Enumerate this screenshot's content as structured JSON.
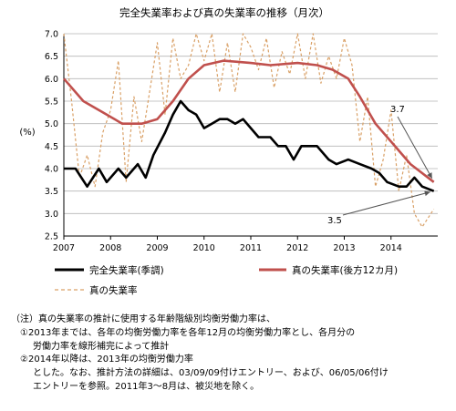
{
  "chart_data": {
    "type": "line",
    "title": "完全失業率および真の失業率の推移（月次）",
    "ylabel": "(%)",
    "xlabel": "",
    "ylim": [
      2.5,
      7.0
    ],
    "yticks": [
      "2.5",
      "3.0",
      "3.5",
      "4.0",
      "4.5",
      "5.0",
      "5.5",
      "6.0",
      "6.5",
      "7.0"
    ],
    "xlim": [
      "2007-01",
      "2014-12"
    ],
    "xticks": [
      "2007",
      "2008",
      "2009",
      "2010",
      "2011",
      "2012",
      "2013",
      "2014"
    ],
    "grid": "horizontal",
    "legend_position": "bottom",
    "colors": {
      "unemployment": "#000000",
      "true_12m": "#c0504d",
      "true": "#d9a066"
    },
    "series": [
      {
        "name": "完全失業率(季調)",
        "style": "solid-black",
        "points": [
          [
            "2007-01",
            4.0
          ],
          [
            "2007-04",
            4.0
          ],
          [
            "2007-07",
            3.6
          ],
          [
            "2007-10",
            4.0
          ],
          [
            "2007-12",
            3.7
          ],
          [
            "2008-03",
            4.0
          ],
          [
            "2008-05",
            3.8
          ],
          [
            "2008-08",
            4.1
          ],
          [
            "2008-10",
            3.8
          ],
          [
            "2008-12",
            4.3
          ],
          [
            "2009-03",
            4.8
          ],
          [
            "2009-05",
            5.2
          ],
          [
            "2009-07",
            5.5
          ],
          [
            "2009-09",
            5.3
          ],
          [
            "2009-11",
            5.2
          ],
          [
            "2010-01",
            4.9
          ],
          [
            "2010-03",
            5.0
          ],
          [
            "2010-05",
            5.1
          ],
          [
            "2010-07",
            5.1
          ],
          [
            "2010-09",
            5.0
          ],
          [
            "2010-11",
            5.1
          ],
          [
            "2011-01",
            4.9
          ],
          [
            "2011-03",
            4.7
          ],
          [
            "2011-06",
            4.7
          ],
          [
            "2011-08",
            4.5
          ],
          [
            "2011-10",
            4.5
          ],
          [
            "2011-12",
            4.2
          ],
          [
            "2012-02",
            4.5
          ],
          [
            "2012-06",
            4.5
          ],
          [
            "2012-09",
            4.2
          ],
          [
            "2012-11",
            4.1
          ],
          [
            "2013-02",
            4.2
          ],
          [
            "2013-05",
            4.1
          ],
          [
            "2013-08",
            4.0
          ],
          [
            "2013-10",
            3.9
          ],
          [
            "2013-12",
            3.7
          ],
          [
            "2014-03",
            3.6
          ],
          [
            "2014-05",
            3.6
          ],
          [
            "2014-07",
            3.8
          ],
          [
            "2014-09",
            3.6
          ],
          [
            "2014-12",
            3.5
          ]
        ]
      },
      {
        "name": "真の失業率(後方12カ月)",
        "style": "solid-red",
        "points": [
          [
            "2007-01",
            6.0
          ],
          [
            "2007-06",
            5.5
          ],
          [
            "2007-12",
            5.2
          ],
          [
            "2008-04",
            5.0
          ],
          [
            "2008-09",
            5.0
          ],
          [
            "2009-01",
            5.1
          ],
          [
            "2009-05",
            5.5
          ],
          [
            "2009-09",
            6.0
          ],
          [
            "2010-01",
            6.3
          ],
          [
            "2010-06",
            6.4
          ],
          [
            "2011-01",
            6.35
          ],
          [
            "2011-06",
            6.3
          ],
          [
            "2012-01",
            6.35
          ],
          [
            "2012-06",
            6.3
          ],
          [
            "2012-10",
            6.2
          ],
          [
            "2013-02",
            6.0
          ],
          [
            "2013-05",
            5.6
          ],
          [
            "2013-09",
            5.0
          ],
          [
            "2014-01",
            4.6
          ],
          [
            "2014-06",
            4.1
          ],
          [
            "2014-12",
            3.7
          ]
        ]
      },
      {
        "name": "真の失業率",
        "style": "dashed-tan",
        "points": [
          [
            "2007-01",
            7.0
          ],
          [
            "2007-03",
            5.5
          ],
          [
            "2007-05",
            3.8
          ],
          [
            "2007-07",
            4.3
          ],
          [
            "2007-09",
            3.6
          ],
          [
            "2007-11",
            4.8
          ],
          [
            "2008-01",
            5.3
          ],
          [
            "2008-03",
            6.4
          ],
          [
            "2008-05",
            3.7
          ],
          [
            "2008-07",
            5.6
          ],
          [
            "2008-09",
            4.6
          ],
          [
            "2008-11",
            5.7
          ],
          [
            "2009-01",
            6.8
          ],
          [
            "2009-03",
            5.2
          ],
          [
            "2009-05",
            6.9
          ],
          [
            "2009-07",
            6.0
          ],
          [
            "2009-09",
            6.3
          ],
          [
            "2009-11",
            7.0
          ],
          [
            "2010-01",
            6.4
          ],
          [
            "2010-03",
            7.0
          ],
          [
            "2010-05",
            5.7
          ],
          [
            "2010-07",
            6.8
          ],
          [
            "2010-09",
            5.7
          ],
          [
            "2010-11",
            7.0
          ],
          [
            "2011-01",
            6.7
          ],
          [
            "2011-03",
            6.2
          ],
          [
            "2011-05",
            6.9
          ],
          [
            "2011-07",
            5.8
          ],
          [
            "2011-09",
            6.6
          ],
          [
            "2011-11",
            6.1
          ],
          [
            "2012-01",
            7.0
          ],
          [
            "2012-03",
            6.0
          ],
          [
            "2012-05",
            7.0
          ],
          [
            "2012-07",
            5.9
          ],
          [
            "2012-09",
            6.5
          ],
          [
            "2012-11",
            6.0
          ],
          [
            "2013-01",
            6.9
          ],
          [
            "2013-03",
            6.3
          ],
          [
            "2013-05",
            4.6
          ],
          [
            "2013-07",
            5.6
          ],
          [
            "2013-09",
            3.6
          ],
          [
            "2013-11",
            4.2
          ],
          [
            "2014-01",
            5.3
          ],
          [
            "2014-03",
            3.5
          ],
          [
            "2014-05",
            4.3
          ],
          [
            "2014-07",
            3.0
          ],
          [
            "2014-09",
            2.7
          ],
          [
            "2014-12",
            3.1
          ]
        ]
      }
    ],
    "annotations": [
      {
        "text": "3.7",
        "target": [
          "2014-12",
          3.7
        ]
      },
      {
        "text": "3.5",
        "target": [
          "2014-12",
          3.5
        ]
      }
    ]
  },
  "notes": [
    "（注）真の失業率の推計に使用する年齢階級別均衡労働力率は、",
    "①2013年までは、各年の均衡労働力率を各年12月の均衡労働力率とし、各月分の",
    "労働力率を線形補完によって推計",
    "②2014年以降は、2013年の均衡労働力率",
    "とした。なお、推計方法の詳細は、03/09/09付けエントリー、および、06/05/06付け",
    "エントリーを参照。2011年3～8月は、被災地を除く。"
  ]
}
